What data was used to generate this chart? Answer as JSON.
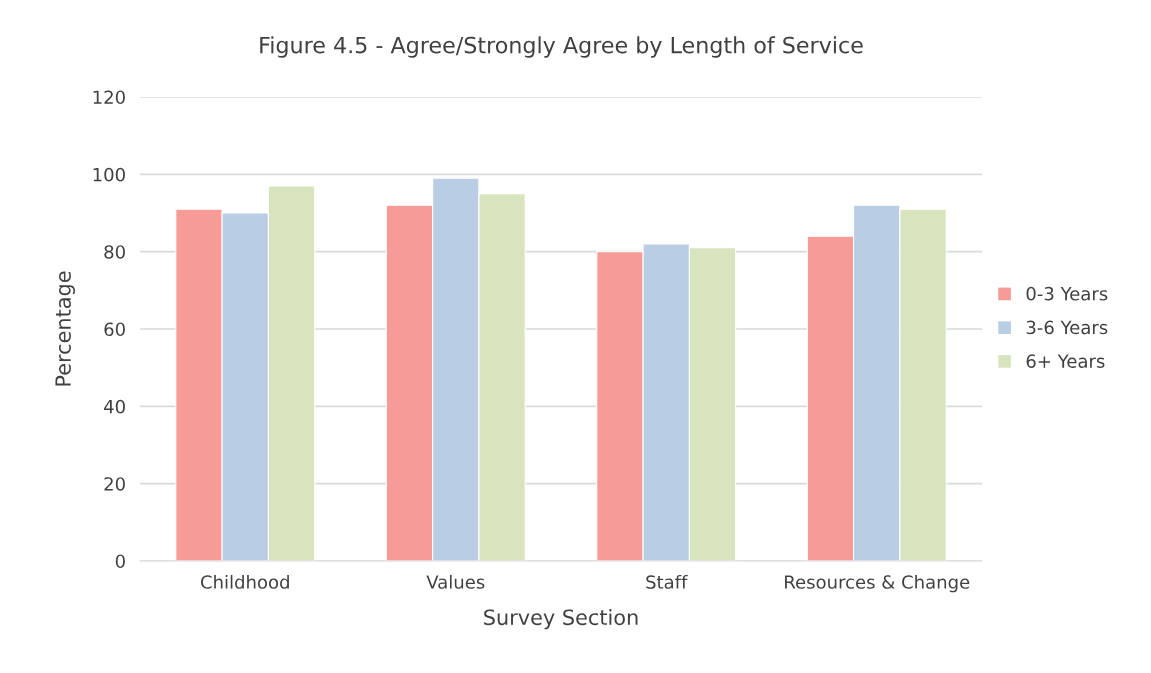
{
  "chart_data": {
    "type": "bar",
    "title": "Figure 4.5 - Agree/Strongly Agree by Length of Service",
    "xlabel": "Survey Section",
    "ylabel": "Percentage",
    "categories": [
      "Childhood",
      "Values",
      "Staff",
      "Resources & Change"
    ],
    "series": [
      {
        "name": "0-3 Years",
        "color": "#f69b95",
        "values": [
          91,
          92,
          80,
          84
        ]
      },
      {
        "name": "3-6 Years",
        "color": "#b9cde4",
        "values": [
          90,
          99,
          82,
          92
        ]
      },
      {
        "name": "6+ Years",
        "color": "#d8e4bd",
        "values": [
          97,
          95,
          81,
          91
        ]
      }
    ],
    "ylim": [
      0,
      120
    ],
    "yticks": [
      0,
      20,
      40,
      60,
      80,
      100,
      120
    ],
    "grid": "y",
    "legend": "right"
  }
}
